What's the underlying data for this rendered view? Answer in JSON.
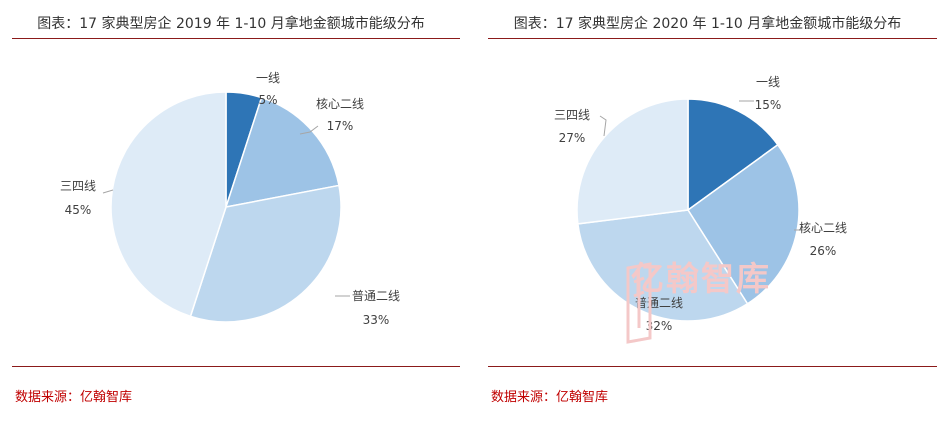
{
  "charts": [
    {
      "title": "图表：17 家典型房企 2019 年 1-10 月拿地金额城市能级分布",
      "source": "数据来源：亿翰智库"
    },
    {
      "title": "图表：17 家典型房企 2020 年 1-10 月拿地金额城市能级分布",
      "source": "数据来源：亿翰智库"
    }
  ],
  "watermark": "亿翰智库",
  "colors": {
    "一线": "#2E75B6",
    "核心二线": "#9DC3E6",
    "普通二线": "#BDD7EE",
    "三四线": "#DEEBF7",
    "rule": "#8B1A1A",
    "source": "#C00000"
  },
  "chart_data": [
    {
      "type": "pie",
      "title": "图表：17 家典型房企 2019 年 1-10 月拿地金额城市能级分布",
      "categories": [
        "一线",
        "核心二线",
        "普通二线",
        "三四线"
      ],
      "values": [
        5,
        17,
        33,
        45
      ],
      "unit": "%"
    },
    {
      "type": "pie",
      "title": "图表：17 家典型房企 2020 年 1-10 月拿地金额城市能级分布",
      "categories": [
        "一线",
        "核心二线",
        "普通二线",
        "三四线"
      ],
      "values": [
        15,
        26,
        32,
        27
      ],
      "unit": "%"
    }
  ]
}
